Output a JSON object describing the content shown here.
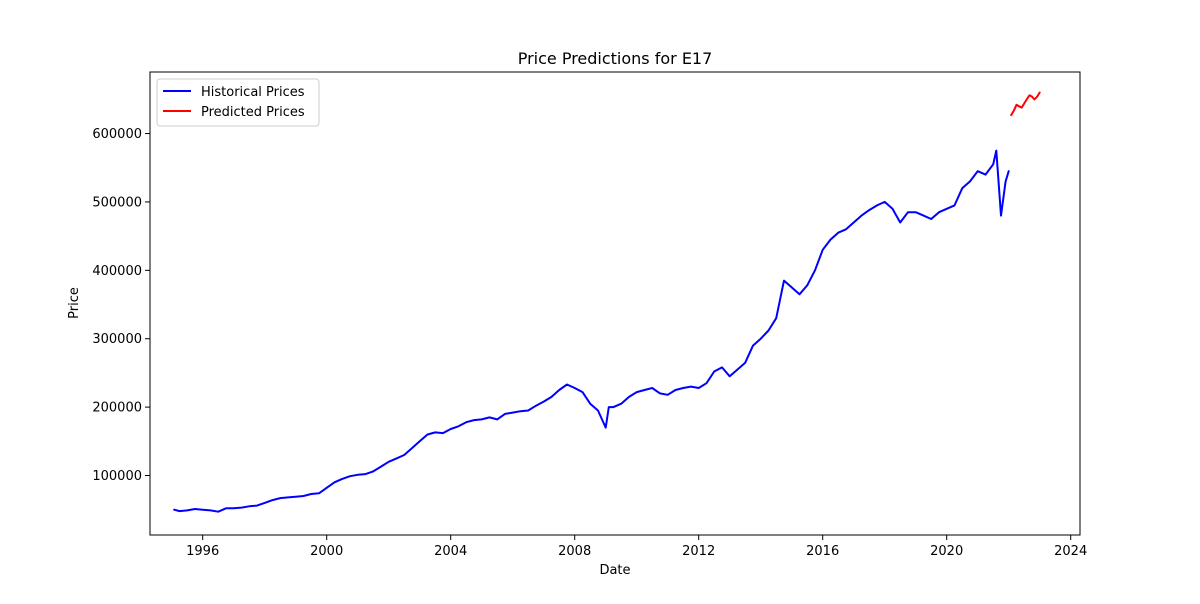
{
  "chart_data": {
    "type": "line",
    "title": "Price Predictions for E17",
    "xlabel": "Date",
    "ylabel": "Price",
    "xlim": [
      1994.3,
      2024.3
    ],
    "ylim": [
      13000,
      690000
    ],
    "x_ticks": [
      1996,
      2000,
      2004,
      2008,
      2012,
      2016,
      2020,
      2024
    ],
    "y_ticks": [
      100000,
      200000,
      300000,
      400000,
      500000,
      600000
    ],
    "grid": false,
    "legend_position": "top-left",
    "series": [
      {
        "name": "Historical Prices",
        "color": "#0000ff",
        "points": [
          [
            1995.08,
            50000
          ],
          [
            1995.25,
            48000
          ],
          [
            1995.5,
            49000
          ],
          [
            1995.75,
            51000
          ],
          [
            1996.0,
            50000
          ],
          [
            1996.25,
            49000
          ],
          [
            1996.5,
            47000
          ],
          [
            1996.75,
            52000
          ],
          [
            1997.0,
            52000
          ],
          [
            1997.25,
            53000
          ],
          [
            1997.5,
            55000
          ],
          [
            1997.75,
            56000
          ],
          [
            1998.0,
            60000
          ],
          [
            1998.25,
            64000
          ],
          [
            1998.5,
            67000
          ],
          [
            1998.75,
            68000
          ],
          [
            1999.0,
            69000
          ],
          [
            1999.25,
            70000
          ],
          [
            1999.5,
            73000
          ],
          [
            1999.75,
            74000
          ],
          [
            2000.0,
            82000
          ],
          [
            2000.25,
            90000
          ],
          [
            2000.5,
            95000
          ],
          [
            2000.75,
            99000
          ],
          [
            2001.0,
            101000
          ],
          [
            2001.25,
            102000
          ],
          [
            2001.5,
            106000
          ],
          [
            2001.75,
            113000
          ],
          [
            2002.0,
            120000
          ],
          [
            2002.25,
            125000
          ],
          [
            2002.5,
            130000
          ],
          [
            2002.75,
            140000
          ],
          [
            2003.0,
            150000
          ],
          [
            2003.25,
            160000
          ],
          [
            2003.5,
            163000
          ],
          [
            2003.75,
            162000
          ],
          [
            2004.0,
            168000
          ],
          [
            2004.25,
            172000
          ],
          [
            2004.5,
            178000
          ],
          [
            2004.75,
            181000
          ],
          [
            2005.0,
            182000
          ],
          [
            2005.25,
            185000
          ],
          [
            2005.5,
            182000
          ],
          [
            2005.75,
            190000
          ],
          [
            2006.0,
            192000
          ],
          [
            2006.25,
            194000
          ],
          [
            2006.5,
            195000
          ],
          [
            2006.75,
            202000
          ],
          [
            2007.0,
            208000
          ],
          [
            2007.25,
            215000
          ],
          [
            2007.5,
            225000
          ],
          [
            2007.75,
            233000
          ],
          [
            2008.0,
            228000
          ],
          [
            2008.25,
            222000
          ],
          [
            2008.5,
            205000
          ],
          [
            2008.75,
            195000
          ],
          [
            2009.0,
            170000
          ],
          [
            2009.1,
            200000
          ],
          [
            2009.25,
            200000
          ],
          [
            2009.5,
            205000
          ],
          [
            2009.75,
            215000
          ],
          [
            2010.0,
            222000
          ],
          [
            2010.25,
            225000
          ],
          [
            2010.5,
            228000
          ],
          [
            2010.75,
            220000
          ],
          [
            2011.0,
            218000
          ],
          [
            2011.25,
            225000
          ],
          [
            2011.5,
            228000
          ],
          [
            2011.75,
            230000
          ],
          [
            2012.0,
            228000
          ],
          [
            2012.25,
            235000
          ],
          [
            2012.5,
            252000
          ],
          [
            2012.75,
            258000
          ],
          [
            2013.0,
            245000
          ],
          [
            2013.25,
            255000
          ],
          [
            2013.5,
            265000
          ],
          [
            2013.75,
            290000
          ],
          [
            2014.0,
            300000
          ],
          [
            2014.25,
            312000
          ],
          [
            2014.5,
            330000
          ],
          [
            2014.75,
            385000
          ],
          [
            2015.0,
            375000
          ],
          [
            2015.25,
            365000
          ],
          [
            2015.5,
            378000
          ],
          [
            2015.75,
            400000
          ],
          [
            2016.0,
            430000
          ],
          [
            2016.25,
            445000
          ],
          [
            2016.5,
            455000
          ],
          [
            2016.75,
            460000
          ],
          [
            2017.0,
            470000
          ],
          [
            2017.25,
            480000
          ],
          [
            2017.5,
            488000
          ],
          [
            2017.75,
            495000
          ],
          [
            2018.0,
            500000
          ],
          [
            2018.25,
            490000
          ],
          [
            2018.5,
            470000
          ],
          [
            2018.75,
            485000
          ],
          [
            2019.0,
            485000
          ],
          [
            2019.25,
            480000
          ],
          [
            2019.5,
            475000
          ],
          [
            2019.75,
            485000
          ],
          [
            2020.0,
            490000
          ],
          [
            2020.25,
            495000
          ],
          [
            2020.5,
            520000
          ],
          [
            2020.75,
            530000
          ],
          [
            2021.0,
            545000
          ],
          [
            2021.25,
            540000
          ],
          [
            2021.5,
            555000
          ],
          [
            2021.6,
            575000
          ],
          [
            2021.75,
            480000
          ],
          [
            2021.9,
            530000
          ],
          [
            2022.0,
            545000
          ]
        ]
      },
      {
        "name": "Predicted Prices",
        "color": "#ff0000",
        "points": [
          [
            2022.08,
            627000
          ],
          [
            2022.17,
            634000
          ],
          [
            2022.25,
            642000
          ],
          [
            2022.33,
            640000
          ],
          [
            2022.42,
            638000
          ],
          [
            2022.5,
            644000
          ],
          [
            2022.58,
            650000
          ],
          [
            2022.67,
            656000
          ],
          [
            2022.75,
            654000
          ],
          [
            2022.83,
            650000
          ],
          [
            2022.92,
            654000
          ],
          [
            2023.0,
            660000
          ]
        ]
      }
    ]
  }
}
